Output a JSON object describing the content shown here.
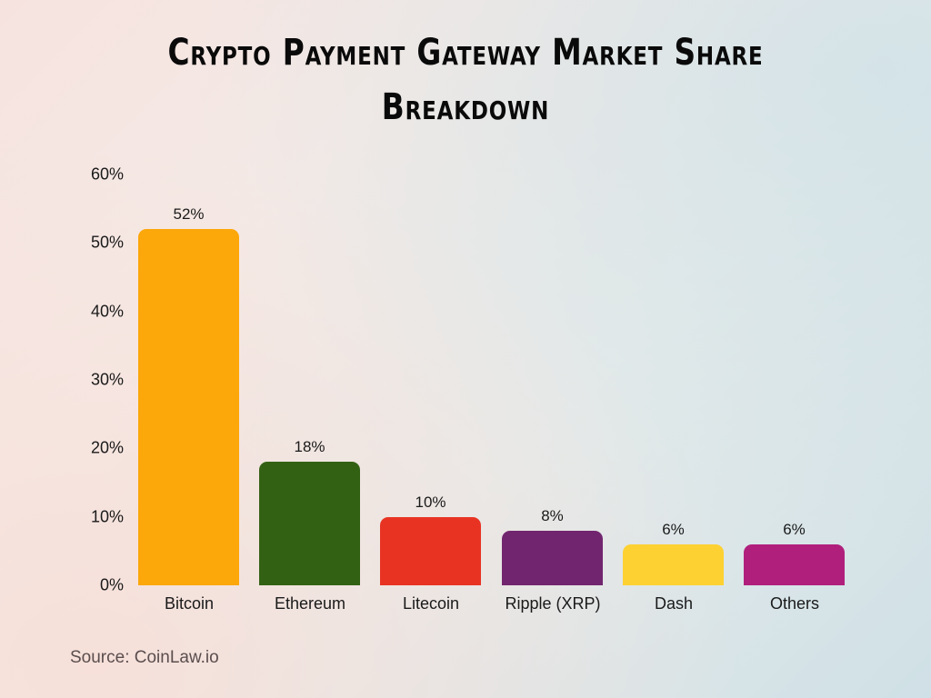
{
  "title": {
    "line1": "Crypto Payment Gateway Market Share",
    "line2": "Breakdown"
  },
  "source": "Source: CoinLaw.io",
  "y_axis": {
    "ticks": [
      "60%",
      "50%",
      "40%",
      "30%",
      "20%",
      "10%",
      "0%"
    ]
  },
  "bars": [
    {
      "category": "Bitcoin",
      "value": 52,
      "label": "52%",
      "color": "#fca70a"
    },
    {
      "category": "Ethereum",
      "value": 18,
      "label": "18%",
      "color": "#336114"
    },
    {
      "category": "Litecoin",
      "value": 10,
      "label": "10%",
      "color": "#e83323"
    },
    {
      "category": "Ripple (XRP)",
      "value": 8,
      "label": "8%",
      "color": "#72256f"
    },
    {
      "category": "Dash",
      "value": 6,
      "label": "6%",
      "color": "#fdd132"
    },
    {
      "category": "Others",
      "value": 6,
      "label": "6%",
      "color": "#b01f7c"
    }
  ],
  "chart_data": {
    "type": "bar",
    "title": "Crypto Payment Gateway Market Share Breakdown",
    "categories": [
      "Bitcoin",
      "Ethereum",
      "Litecoin",
      "Ripple (XRP)",
      "Dash",
      "Others"
    ],
    "values": [
      52,
      18,
      10,
      8,
      6,
      6
    ],
    "value_labels": [
      "52%",
      "18%",
      "10%",
      "8%",
      "6%",
      "6%"
    ],
    "colors": [
      "#fca70a",
      "#336114",
      "#e83323",
      "#72256f",
      "#fdd132",
      "#b01f7c"
    ],
    "xlabel": "",
    "ylabel": "",
    "ylim": [
      0,
      60
    ],
    "yticks": [
      "0%",
      "10%",
      "20%",
      "30%",
      "40%",
      "50%",
      "60%"
    ],
    "grid": false,
    "legend": "none",
    "annotations": [
      "Source: CoinLaw.io"
    ]
  }
}
